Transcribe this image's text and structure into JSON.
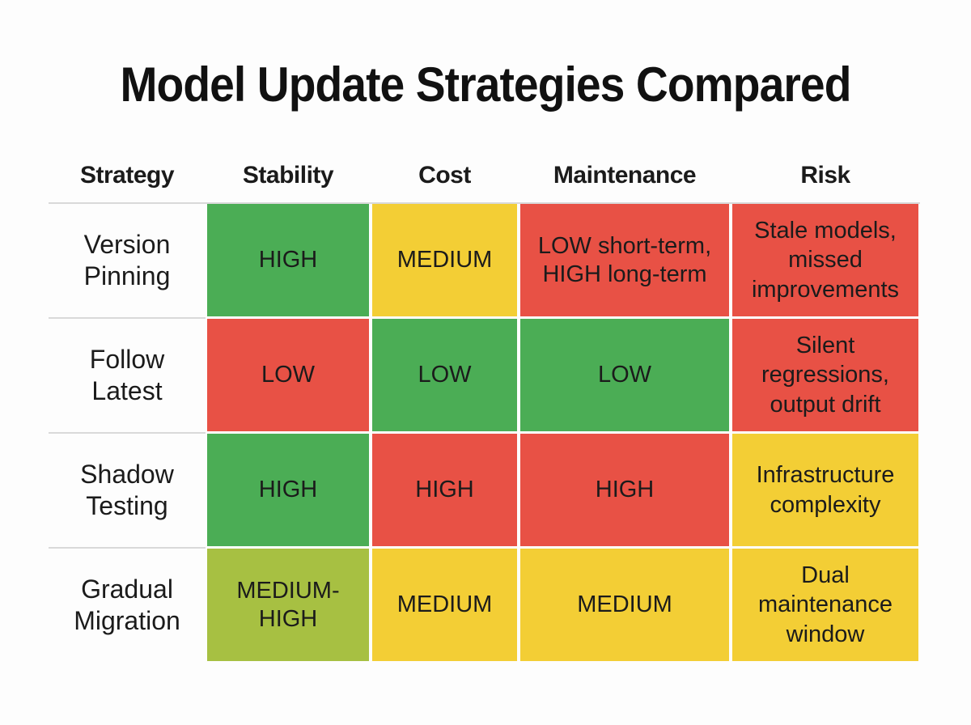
{
  "title": "Model Update Strategies Compared",
  "colors": {
    "white": "#fdfdfd",
    "green": "#4bad55",
    "red": "#e85145",
    "yellow": "#f3ce35",
    "lime": "#a7c042",
    "text": "#1b1b1b",
    "separator": "#d9d9d9"
  },
  "chart_data": {
    "type": "table",
    "title": "Model Update Strategies Compared",
    "columns": [
      "Strategy",
      "Stability",
      "Cost",
      "Maintenance",
      "Risk"
    ],
    "rows": [
      [
        "Version Pinning",
        "HIGH",
        "MEDIUM",
        "LOW short-term, HIGH long-term",
        "Stale models, missed improvements"
      ],
      [
        "Follow Latest",
        "LOW",
        "LOW",
        "LOW",
        "Silent regressions, output drift"
      ],
      [
        "Shadow Testing",
        "HIGH",
        "HIGH",
        "HIGH",
        "Infrastructure complexity"
      ],
      [
        "Gradual Migration",
        "MEDIUM-HIGH",
        "MEDIUM",
        "MEDIUM",
        "Dual maintenance window"
      ]
    ],
    "cell_colors": [
      [
        "white",
        "green",
        "yellow",
        "red",
        "red"
      ],
      [
        "white",
        "red",
        "green",
        "green",
        "red"
      ],
      [
        "white",
        "green",
        "red",
        "red",
        "yellow"
      ],
      [
        "white",
        "lime",
        "yellow",
        "yellow",
        "yellow"
      ]
    ],
    "legend": "cell background encodes rating: green = favorable, yellow = medium, red = unfavorable, lime = medium-high"
  }
}
